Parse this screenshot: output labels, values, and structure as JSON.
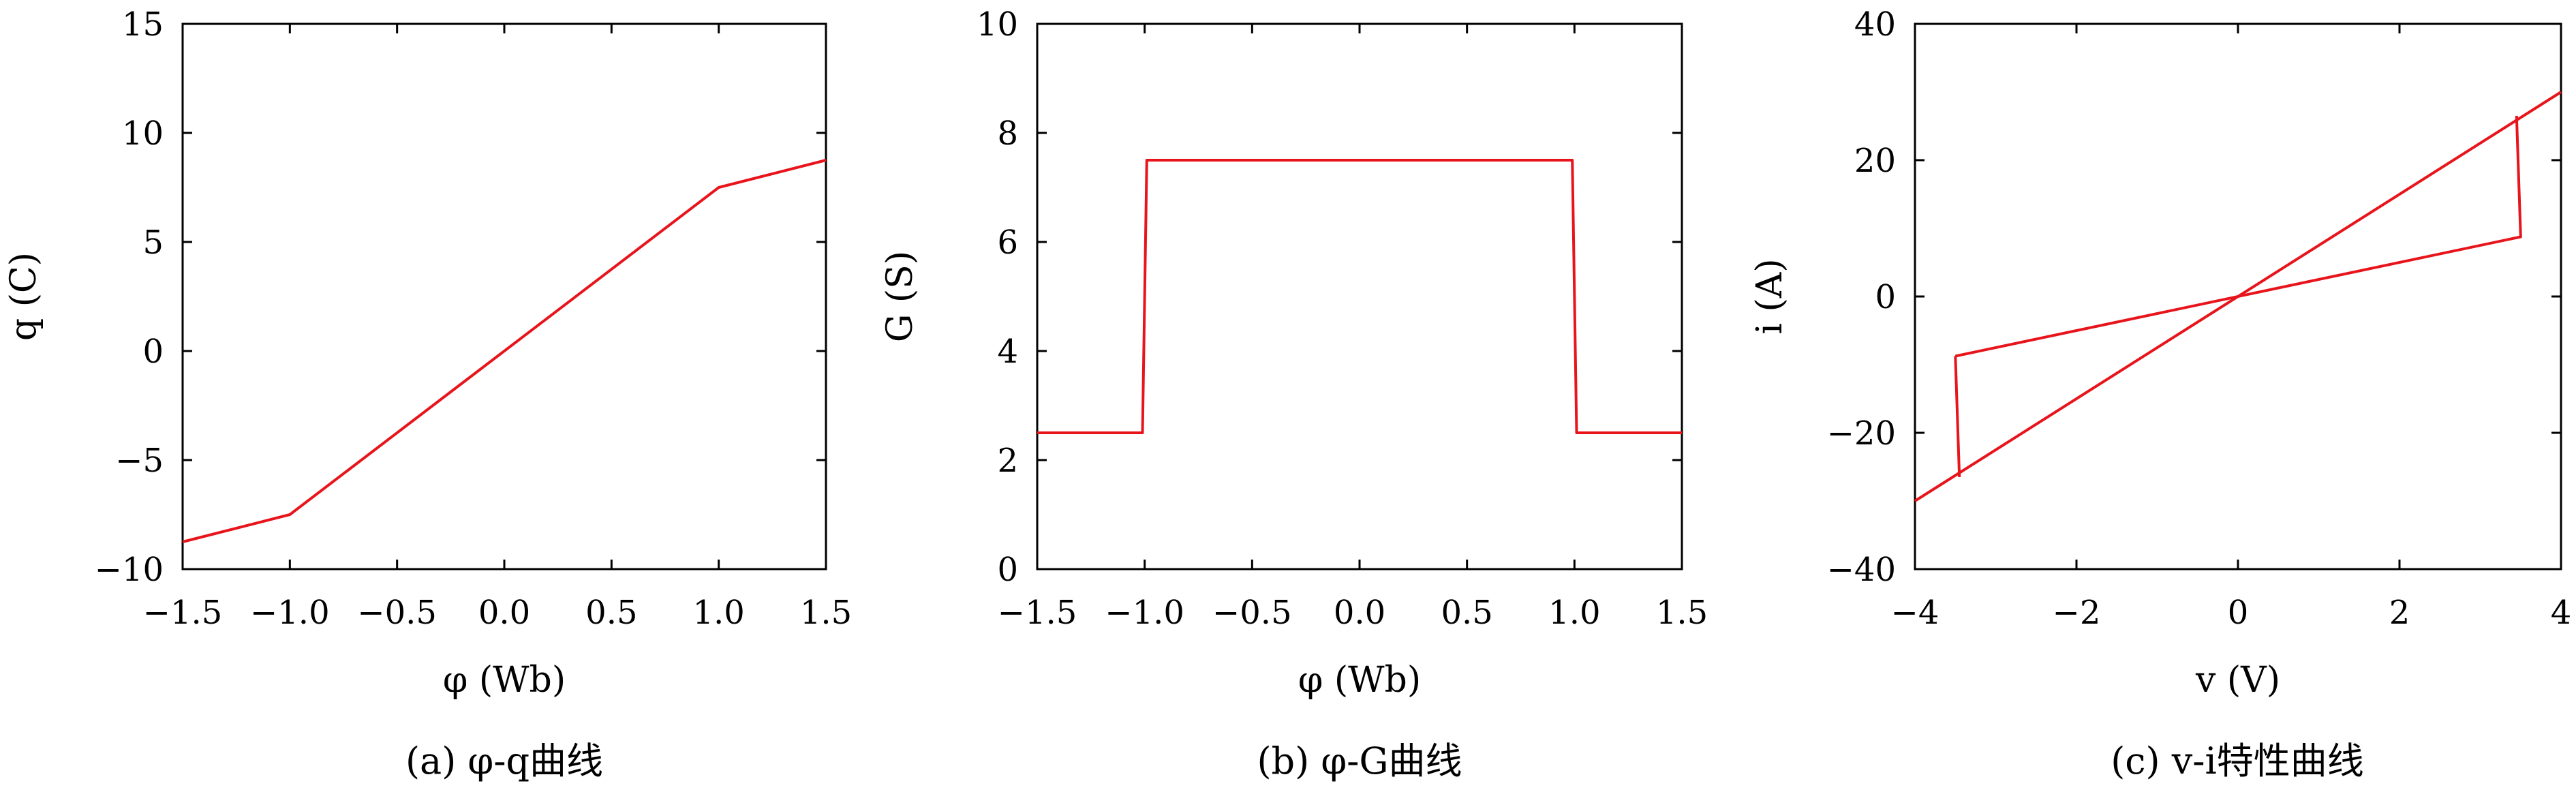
{
  "chart_data": [
    {
      "type": "line",
      "caption": "(a) φ-q曲线",
      "xlabel": "φ (Wb)",
      "ylabel": "q (C)",
      "xlim": [
        -1.5,
        1.5
      ],
      "ylim": [
        -10,
        15
      ],
      "xticks": [
        -1.5,
        -1.0,
        -0.5,
        0.0,
        0.5,
        1.0,
        1.5
      ],
      "xtick_labels": [
        "−1.5",
        "−1.0",
        "−0.5",
        "0.0",
        "0.5",
        "1.0",
        "1.5"
      ],
      "yticks": [
        -10,
        -5,
        0,
        5,
        10,
        15
      ],
      "ytick_labels": [
        "−10",
        "−5",
        "0",
        "5",
        "10",
        "15"
      ],
      "grid": false,
      "color": "#e8141c",
      "series": [
        {
          "x": [
            -1.5,
            -1.0,
            1.0,
            1.5
          ],
          "y": [
            -8.75,
            -7.5,
            7.5,
            8.75
          ]
        }
      ]
    },
    {
      "type": "line",
      "caption": "(b) φ-G曲线",
      "xlabel": "φ (Wb)",
      "ylabel": "G (S)",
      "xlim": [
        -1.5,
        1.5
      ],
      "ylim": [
        0,
        10
      ],
      "xticks": [
        -1.5,
        -1.0,
        -0.5,
        0.0,
        0.5,
        1.0,
        1.5
      ],
      "xtick_labels": [
        "−1.5",
        "−1.0",
        "−0.5",
        "0.0",
        "0.5",
        "1.0",
        "1.5"
      ],
      "yticks": [
        0,
        2,
        4,
        6,
        8,
        10
      ],
      "ytick_labels": [
        "0",
        "2",
        "4",
        "6",
        "8",
        "10"
      ],
      "grid": false,
      "color": "#e8141c",
      "series": [
        {
          "x": [
            -1.5,
            -1.01,
            -0.99,
            0.99,
            1.01,
            1.5
          ],
          "y": [
            2.5,
            2.5,
            7.5,
            7.5,
            2.5,
            2.5
          ]
        }
      ]
    },
    {
      "type": "line",
      "caption": "(c) v-i特性曲线",
      "xlabel": "v (V)",
      "ylabel": "i (A)",
      "xlim": [
        -4,
        4
      ],
      "ylim": [
        -40,
        40
      ],
      "xticks": [
        -4,
        -2,
        0,
        2,
        4
      ],
      "xtick_labels": [
        "−4",
        "−2",
        "0",
        "2",
        "4"
      ],
      "yticks": [
        -40,
        -20,
        0,
        20,
        40
      ],
      "ytick_labels": [
        "−40",
        "−20",
        "0",
        "20",
        "40"
      ],
      "grid": false,
      "color": "#e8141c",
      "series": [
        {
          "x": [
            -4,
            4
          ],
          "y": [
            -30,
            30
          ]
        },
        {
          "x": [
            -3.5,
            3.5,
            3.45
          ],
          "y": [
            -8.75,
            8.75,
            26.5
          ]
        },
        {
          "x": [
            -3.45,
            -3.5
          ],
          "y": [
            -26.5,
            -8.75
          ]
        }
      ]
    }
  ]
}
